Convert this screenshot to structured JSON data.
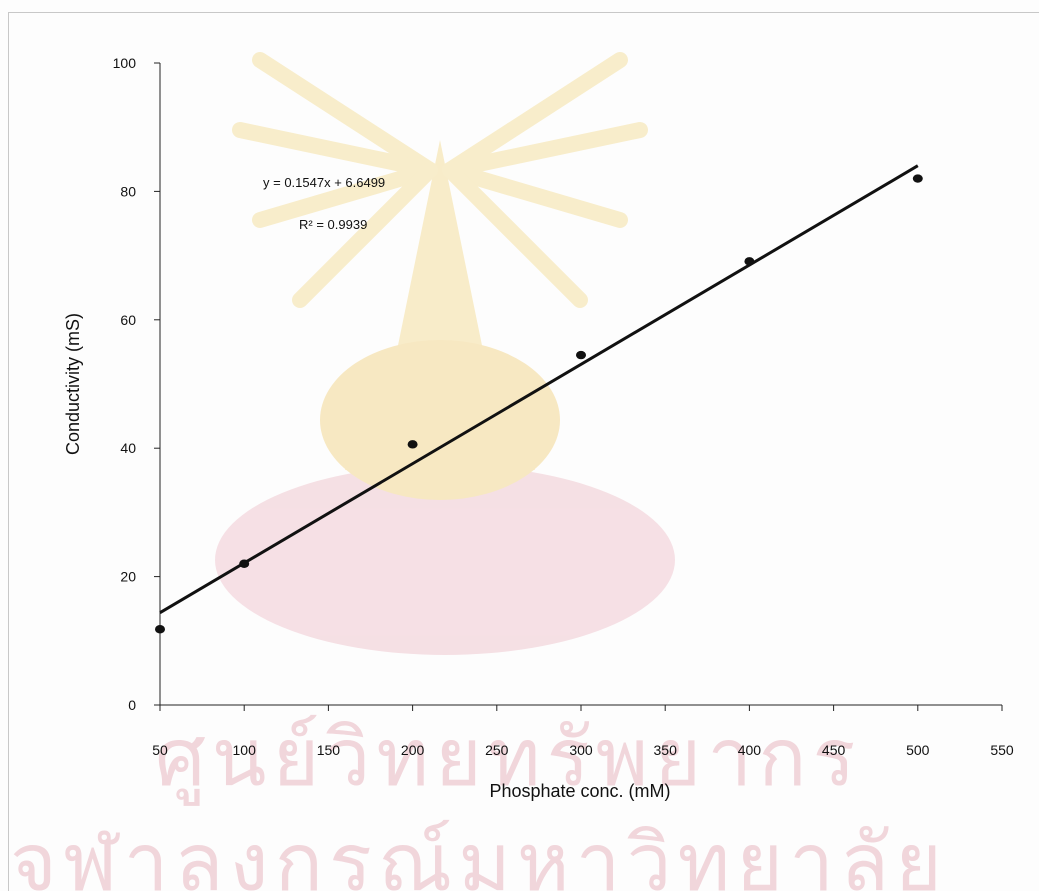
{
  "chart_data": {
    "type": "scatter",
    "title": "",
    "xlabel": "Phosphate conc. (mM)",
    "ylabel": "Conductivity (mS)",
    "xlim": [
      50,
      550
    ],
    "ylim": [
      0,
      100
    ],
    "x_ticks": [
      50,
      100,
      150,
      200,
      250,
      300,
      350,
      400,
      450,
      500,
      550
    ],
    "y_ticks": [
      0,
      20,
      40,
      60,
      80,
      100
    ],
    "grid": false,
    "series": [
      {
        "x": [
          50,
          100,
          200,
          300,
          400,
          500
        ],
        "y": [
          11.8,
          22,
          40.6,
          54.5,
          69.1,
          82
        ]
      }
    ],
    "trendline": {
      "type": "linear",
      "slope": 0.1547,
      "intercept": 6.6499,
      "x_range": [
        50,
        500
      ],
      "equation_label": "y = 0.1547x + 6.6499",
      "r2_label": "R² = 0.9939"
    },
    "colors": {
      "points": "#111111",
      "trendline": "#111111",
      "watermark_yellow": "#f7e8b8",
      "watermark_pink": "#f3d7dd"
    }
  },
  "watermark": {
    "line1": "ศูนย์วิทยทรัพยากร",
    "line2": "จุฬาลงกรณ์มหาวิทยาลัย"
  }
}
